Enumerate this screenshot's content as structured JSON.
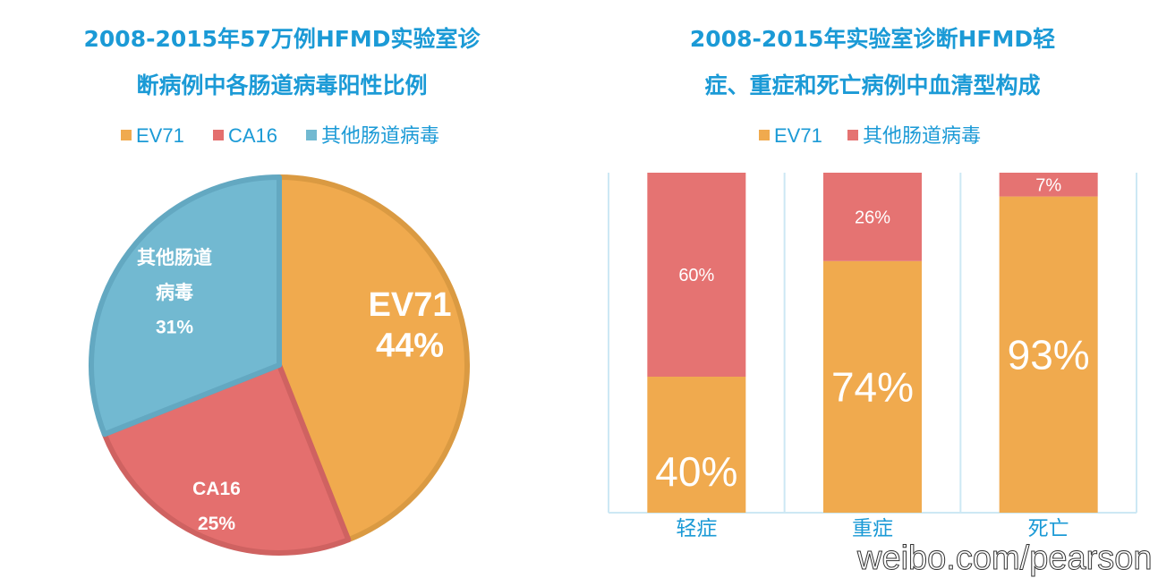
{
  "chart_data": [
    {
      "type": "pie",
      "title": "2008-2015年57万例HFMD实验室诊断病例中各肠道病毒阳性比例",
      "title_lines": [
        "2008-2015年57万例HFMD实验室诊",
        "断病例中各肠道病毒阳性比例"
      ],
      "legend": [
        "EV71",
        "CA16",
        "其他肠道病毒"
      ],
      "legend_position": "top",
      "slices": [
        {
          "name": "EV71",
          "label_lines": [
            "EV71",
            "44%"
          ],
          "value": 44,
          "color": "#F0AA4E",
          "border": "#DA9A42"
        },
        {
          "name": "CA16",
          "label_lines": [
            "CA16",
            "25%"
          ],
          "value": 25,
          "color": "#E46F6E",
          "border": "#CF6261"
        },
        {
          "name": "其他肠道病毒",
          "label_lines": [
            "其他肠道",
            "病毒",
            "31%"
          ],
          "value": 31,
          "color": "#72B9D1",
          "border": "#63A8C1"
        }
      ]
    },
    {
      "type": "bar",
      "stacked": true,
      "title": "2008-2015年实验室诊断HFMD轻症、重症和死亡病例中血清型构成",
      "title_lines": [
        "2008-2015年实验室诊断HFMD轻",
        "症、重症和死亡病例中血清型构成"
      ],
      "legend_position": "top",
      "categories": [
        "轻症",
        "重症",
        "死亡"
      ],
      "ylim": [
        0,
        100
      ],
      "series": [
        {
          "name": "EV71",
          "values": [
            40,
            74,
            93
          ],
          "labels": [
            "40%",
            "74%",
            "93%"
          ],
          "color": "#F0AA4E"
        },
        {
          "name": "其他肠道病毒",
          "values": [
            60,
            26,
            7
          ],
          "labels": [
            "60%",
            "26%",
            "7%"
          ],
          "color": "#E57372"
        }
      ]
    }
  ],
  "watermark": "weibo.com/pearson",
  "title_color": "#1B9AD6"
}
